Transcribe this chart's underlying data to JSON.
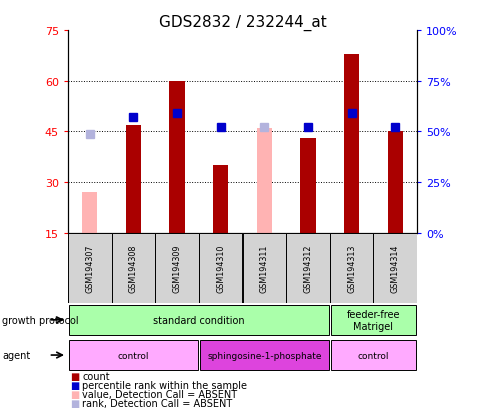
{
  "title": "GDS2832 / 232244_at",
  "samples": [
    "GSM194307",
    "GSM194308",
    "GSM194309",
    "GSM194310",
    "GSM194311",
    "GSM194312",
    "GSM194313",
    "GSM194314"
  ],
  "bar_values": [
    null,
    47,
    60,
    35,
    null,
    43,
    68,
    45
  ],
  "bar_absent_values": [
    27,
    null,
    null,
    null,
    46,
    null,
    null,
    null
  ],
  "rank_values_pct": [
    null,
    57,
    59,
    52,
    null,
    52,
    59,
    52
  ],
  "rank_absent_values_pct": [
    49,
    null,
    null,
    null,
    52,
    null,
    null,
    null
  ],
  "bar_color": "#aa0000",
  "bar_absent_color": "#ffb3b3",
  "rank_color": "#0000cc",
  "rank_absent_color": "#b3b3dd",
  "ylim_left": [
    15,
    75
  ],
  "ylim_right": [
    0,
    100
  ],
  "yticks_left": [
    15,
    30,
    45,
    60,
    75
  ],
  "yticks_right": [
    0,
    25,
    50,
    75,
    100
  ],
  "ytick_labels_right": [
    "0%",
    "25%",
    "50%",
    "75%",
    "100%"
  ],
  "gp_groups": [
    {
      "label": "standard condition",
      "start": 0,
      "end": 6,
      "color": "#aaffaa"
    },
    {
      "label": "feeder-free\nMatrigel",
      "start": 6,
      "end": 8,
      "color": "#aaffaa"
    }
  ],
  "ag_groups": [
    {
      "label": "control",
      "start": 0,
      "end": 3,
      "color": "#ffaaff"
    },
    {
      "label": "sphingosine-1-phosphate",
      "start": 3,
      "end": 6,
      "color": "#dd44dd"
    },
    {
      "label": "control",
      "start": 6,
      "end": 8,
      "color": "#ffaaff"
    }
  ],
  "legend_items": [
    {
      "label": "count",
      "color": "#aa0000"
    },
    {
      "label": "percentile rank within the sample",
      "color": "#0000cc"
    },
    {
      "label": "value, Detection Call = ABSENT",
      "color": "#ffb3b3"
    },
    {
      "label": "rank, Detection Call = ABSENT",
      "color": "#b3b3dd"
    }
  ],
  "bar_width": 0.35,
  "rank_marker_size": 6
}
